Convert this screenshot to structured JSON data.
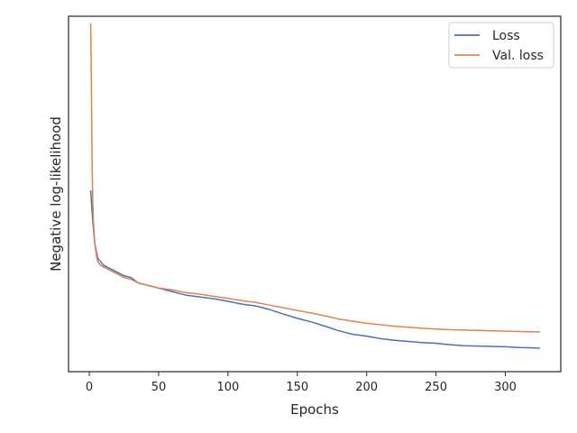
{
  "chart_data": {
    "type": "line",
    "title": "",
    "xlabel": "Epochs",
    "ylabel": "Negative log-likelihood",
    "xlim": [
      -15,
      340
    ],
    "ylim": [
      0,
      1
    ],
    "xticks": [
      0,
      50,
      100,
      150,
      200,
      250,
      300
    ],
    "y_tick_labels_shown": false,
    "grid": false,
    "legend_position": "top-right",
    "series": [
      {
        "name": "Loss",
        "color": "#4c72b0",
        "x": [
          1,
          2,
          3,
          4,
          5,
          6,
          8,
          10,
          15,
          20,
          25,
          30,
          35,
          40,
          50,
          60,
          70,
          80,
          90,
          100,
          110,
          120,
          130,
          140,
          150,
          160,
          170,
          180,
          190,
          200,
          210,
          220,
          230,
          240,
          250,
          260,
          270,
          280,
          290,
          300,
          310,
          320,
          325
        ],
        "y": [
          0.51,
          0.45,
          0.4,
          0.36,
          0.34,
          0.32,
          0.31,
          0.3,
          0.29,
          0.28,
          0.27,
          0.265,
          0.25,
          0.245,
          0.235,
          0.225,
          0.215,
          0.21,
          0.205,
          0.198,
          0.19,
          0.185,
          0.175,
          0.162,
          0.15,
          0.14,
          0.128,
          0.115,
          0.105,
          0.1,
          0.093,
          0.088,
          0.085,
          0.082,
          0.08,
          0.076,
          0.073,
          0.072,
          0.071,
          0.07,
          0.068,
          0.067,
          0.066
        ]
      },
      {
        "name": "Val. loss",
        "color": "#dd8452",
        "x": [
          1,
          1.5,
          2,
          2.5,
          3,
          4,
          5,
          6,
          8,
          10,
          15,
          20,
          25,
          30,
          35,
          40,
          50,
          60,
          70,
          80,
          90,
          100,
          110,
          120,
          130,
          140,
          150,
          160,
          170,
          180,
          190,
          200,
          210,
          220,
          230,
          240,
          250,
          260,
          270,
          280,
          290,
          300,
          310,
          320,
          325
        ],
        "y": [
          0.98,
          0.8,
          0.6,
          0.48,
          0.42,
          0.36,
          0.33,
          0.31,
          0.3,
          0.295,
          0.285,
          0.275,
          0.265,
          0.26,
          0.25,
          0.245,
          0.235,
          0.23,
          0.222,
          0.218,
          0.212,
          0.206,
          0.2,
          0.195,
          0.187,
          0.18,
          0.172,
          0.165,
          0.157,
          0.148,
          0.142,
          0.136,
          0.132,
          0.128,
          0.125,
          0.122,
          0.12,
          0.118,
          0.117,
          0.116,
          0.115,
          0.114,
          0.113,
          0.112,
          0.112
        ]
      }
    ]
  }
}
